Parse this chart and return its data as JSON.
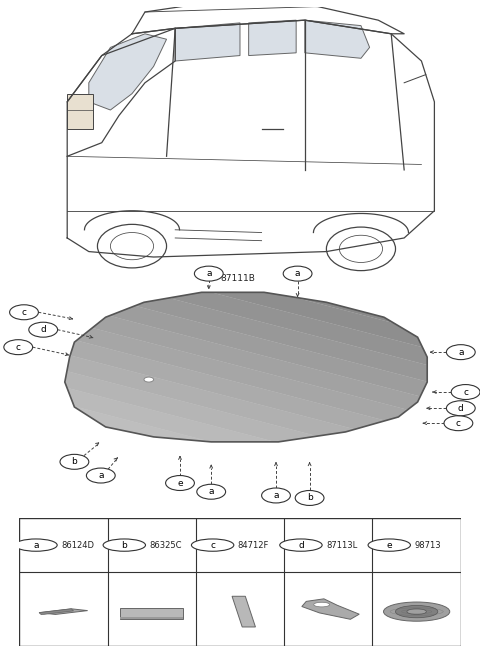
{
  "bg_color": "#ffffff",
  "glass_label": "87111B",
  "glass_color_dark": "#888888",
  "glass_color_light": "#d8d8d8",
  "parts": [
    {
      "id": "a",
      "code": "86124D"
    },
    {
      "id": "b",
      "code": "86325C"
    },
    {
      "id": "c",
      "code": "84712F"
    },
    {
      "id": "d",
      "code": "87113L"
    },
    {
      "id": "e",
      "code": "98713"
    }
  ],
  "line_color": "#444444",
  "callout_fontsize": 6.5,
  "code_fontsize": 6.5
}
